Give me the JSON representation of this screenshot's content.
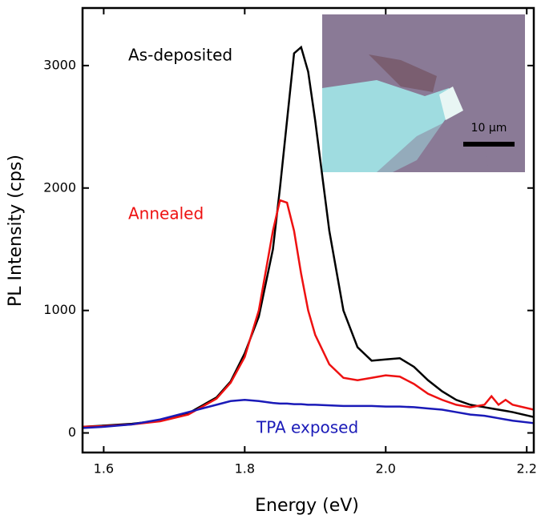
{
  "chart_data": {
    "type": "line",
    "x_label": "Energy (eV)",
    "y_label": "PL Intensity (cps)",
    "x": [
      1.57,
      1.6,
      1.64,
      1.68,
      1.72,
      1.76,
      1.78,
      1.8,
      1.82,
      1.84,
      1.85,
      1.86,
      1.87,
      1.88,
      1.89,
      1.9,
      1.92,
      1.94,
      1.96,
      1.98,
      2.0,
      2.02,
      2.04,
      2.06,
      2.08,
      2.1,
      2.12,
      2.14,
      2.15,
      2.16,
      2.17,
      2.18,
      2.21
    ],
    "series": [
      {
        "name": "As-deposited",
        "color": "#000000",
        "values": [
          50,
          60,
          75,
          100,
          160,
          290,
          420,
          650,
          950,
          1500,
          2000,
          2550,
          3100,
          3150,
          2950,
          2550,
          1650,
          1000,
          700,
          590,
          600,
          610,
          540,
          430,
          340,
          270,
          230,
          210,
          200,
          190,
          180,
          170,
          130
        ]
      },
      {
        "name": "Annealed",
        "color": "#ee1111",
        "values": [
          50,
          55,
          70,
          95,
          150,
          280,
          410,
          620,
          1000,
          1650,
          1900,
          1880,
          1650,
          1300,
          1000,
          800,
          560,
          450,
          430,
          450,
          470,
          460,
          400,
          320,
          270,
          230,
          210,
          230,
          300,
          230,
          270,
          230,
          190
        ]
      },
      {
        "name": "TPA exposed",
        "color": "#1a1ab8",
        "values": [
          40,
          50,
          70,
          110,
          170,
          230,
          260,
          270,
          260,
          245,
          240,
          240,
          235,
          235,
          230,
          230,
          225,
          220,
          220,
          220,
          215,
          215,
          210,
          200,
          190,
          170,
          150,
          140,
          130,
          120,
          110,
          100,
          80
        ]
      }
    ],
    "xlim": [
      1.57,
      2.21
    ],
    "ylim": [
      -160,
      3470
    ],
    "xticks": [
      1.6,
      1.8,
      {
        "value": 2,
        "label": "2.0"
      },
      2.2
    ],
    "yticks": [
      0,
      1000,
      2000,
      3000
    ],
    "inset_scale_label": "10 μm"
  }
}
